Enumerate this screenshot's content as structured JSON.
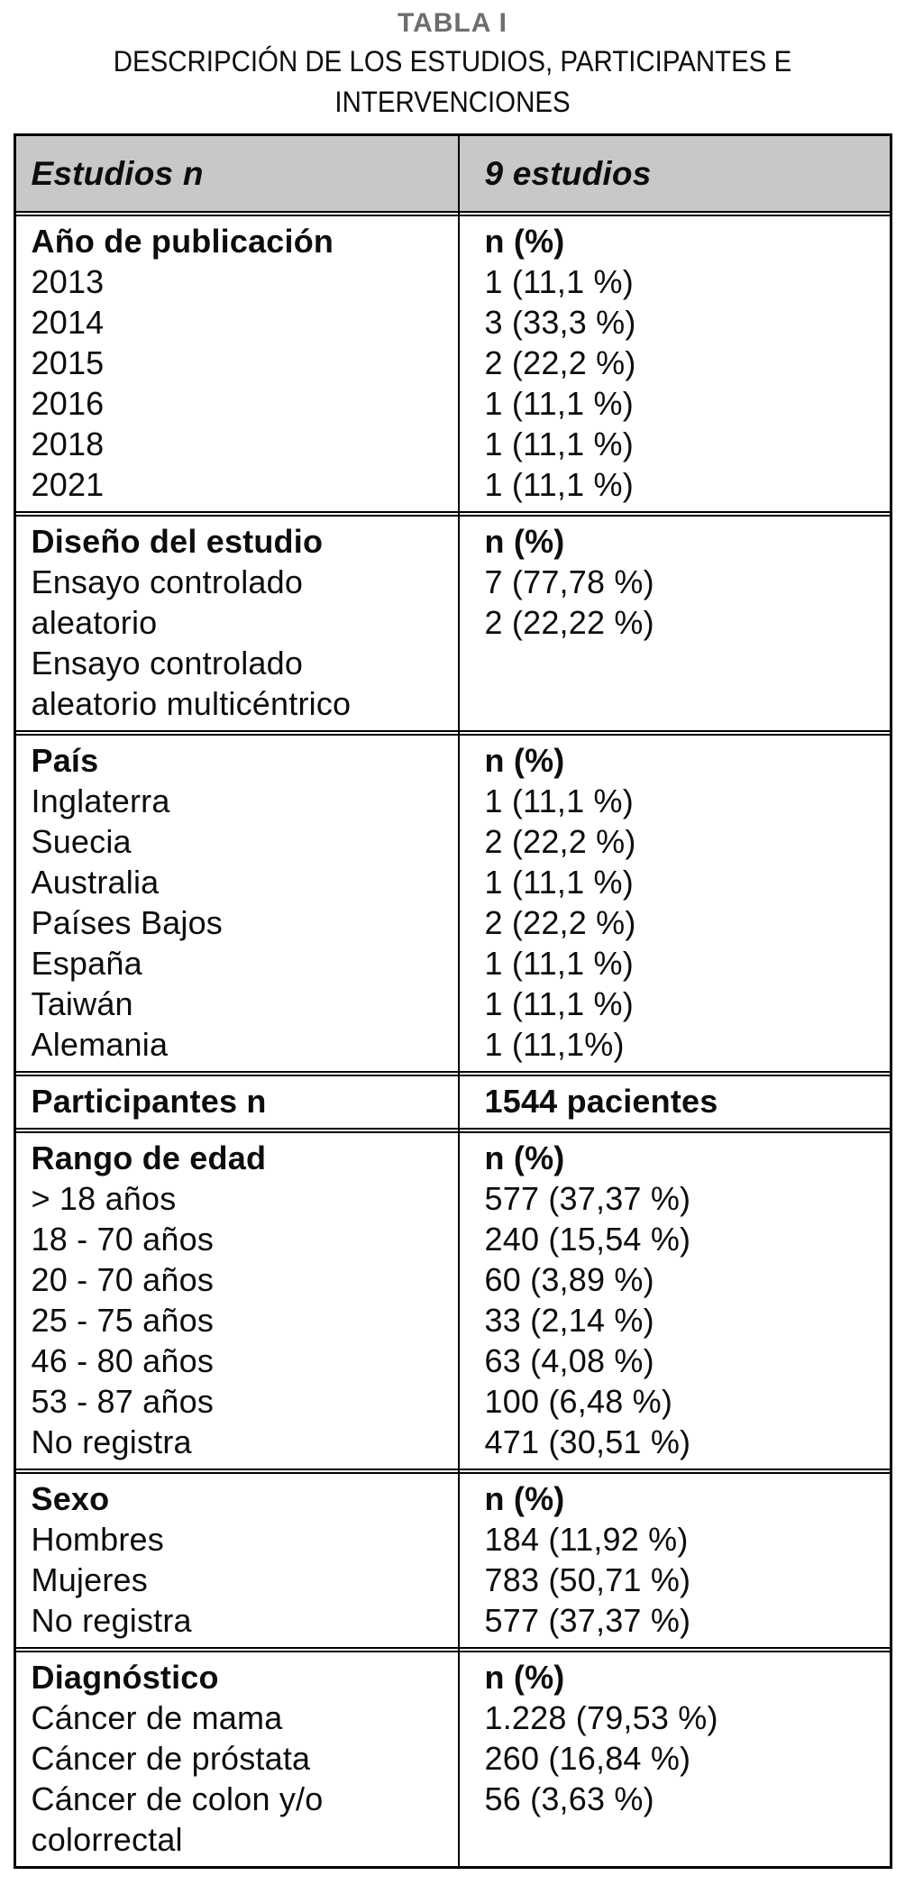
{
  "title": "TABLA I",
  "subtitle_lines": [
    "DESCRIPCIÓN DE LOS ESTUDIOS, PARTICIPANTES E",
    "INTERVENCIONES"
  ],
  "table": {
    "header": {
      "left": "Estudios n",
      "right": "9 estudios"
    },
    "sections": [
      {
        "name": "publication-year",
        "left": [
          "Año de publicación",
          "2013",
          "2014",
          "2015",
          "2016",
          "2018",
          "2021"
        ],
        "right": [
          "n (%)",
          "1 (11,1 %)",
          "3 (33,3 %)",
          "2 (22,2 %)",
          "1 (11,1 %)",
          "1 (11,1 %)",
          "1 (11,1 %)"
        ]
      },
      {
        "name": "study-design",
        "left": [
          "Diseño del estudio",
          "Ensayo controlado",
          "aleatorio",
          "Ensayo controlado",
          "aleatorio multicéntrico"
        ],
        "right": [
          "n (%)",
          "7 (77,78 %)",
          "2 (22,22 %)"
        ]
      },
      {
        "name": "country",
        "left": [
          "País",
          "Inglaterra",
          "Suecia",
          "Australia",
          "Países Bajos",
          "España",
          "Taiwán",
          "Alemania"
        ],
        "right": [
          "n (%)",
          "1 (11,1 %)",
          "2 (22,2 %)",
          "1 (11,1 %)",
          "2 (22,2 %)",
          "1 (11,1 %)",
          "1 (11,1 %)",
          "1 (11,1%)"
        ]
      },
      {
        "name": "participants",
        "left": [
          "Participantes n"
        ],
        "right": [
          "1544 pacientes"
        ]
      },
      {
        "name": "age-range",
        "left": [
          "Rango de edad",
          "> 18 años",
          "18 - 70 años",
          "20 - 70 años",
          "25 - 75 años",
          "46 - 80 años",
          "53 - 87 años",
          "No registra"
        ],
        "right": [
          "n (%)",
          "577 (37,37 %)",
          "240 (15,54 %)",
          "60 (3,89 %)",
          "33 (2,14 %)",
          "63 (4,08 %)",
          "100 (6,48 %)",
          "471 (30,51 %)"
        ]
      },
      {
        "name": "sex",
        "left": [
          "Sexo",
          "Hombres",
          "Mujeres",
          "No registra"
        ],
        "right": [
          "n (%)",
          "184 (11,92 %)",
          "783 (50,71 %)",
          "577 (37,37 %)"
        ]
      },
      {
        "name": "diagnosis",
        "left": [
          "Diagnóstico",
          "Cáncer de mama",
          "Cáncer de próstata",
          "Cáncer de colon y/o",
          "colorrectal"
        ],
        "right": [
          "n (%)",
          "1.228 (79,53 %)",
          "260 (16,84 %)",
          "56 (3,63 %)"
        ]
      }
    ]
  },
  "colors": {
    "header_bg": "#c8c8c8",
    "title_gray": "#6d6d6d",
    "border": "#000000",
    "text": "#0d0d0d"
  }
}
